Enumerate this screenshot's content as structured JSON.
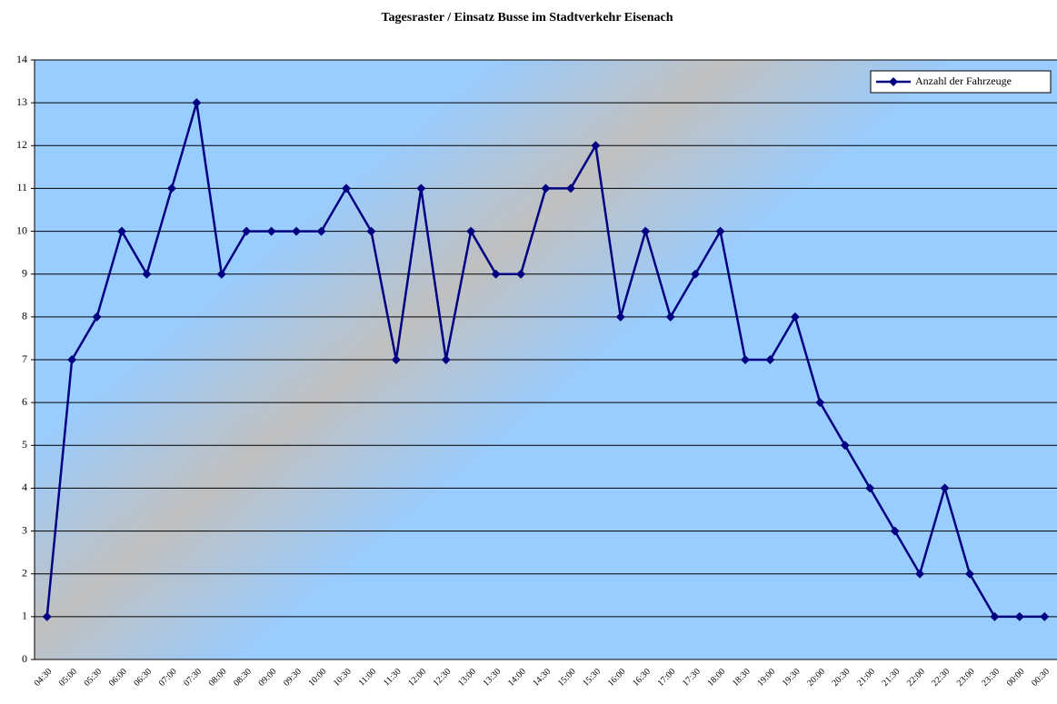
{
  "chart_data": {
    "type": "line",
    "title": "Tagesraster / Einsatz Busse im Stadtverkehr Eisenach",
    "categories": [
      "04:30",
      "05:00",
      "05:30",
      "06:00",
      "06:30",
      "07:00",
      "07:30",
      "08:00",
      "08:30",
      "09:00",
      "09:30",
      "10:00",
      "10:30",
      "11:00",
      "11:30",
      "12:00",
      "12:30",
      "13:00",
      "13:30",
      "14:00",
      "14:30",
      "15:00",
      "15:30",
      "16:00",
      "16:30",
      "17:00",
      "17:30",
      "18:00",
      "18:30",
      "19:00",
      "19:30",
      "20:00",
      "20:30",
      "21:00",
      "21:30",
      "22:00",
      "22:30",
      "23:00",
      "23:30",
      "00:00",
      "00:30"
    ],
    "series": [
      {
        "name": "Anzahl der Fahrzeuge",
        "color": "#000080",
        "values": [
          1,
          7,
          8,
          10,
          9,
          11,
          13,
          9,
          10,
          10,
          10,
          10,
          11,
          10,
          7,
          11,
          7,
          10,
          9,
          9,
          11,
          11,
          12,
          8,
          10,
          8,
          9,
          10,
          7,
          7,
          8,
          6,
          5,
          4,
          3,
          2,
          4,
          2,
          1,
          1,
          1
        ]
      }
    ],
    "ylim": [
      0,
      14
    ],
    "yticks": [
      0,
      1,
      2,
      3,
      4,
      5,
      6,
      7,
      8,
      9,
      10,
      11,
      12,
      13,
      14
    ],
    "grid": true,
    "legend": "top-right"
  }
}
